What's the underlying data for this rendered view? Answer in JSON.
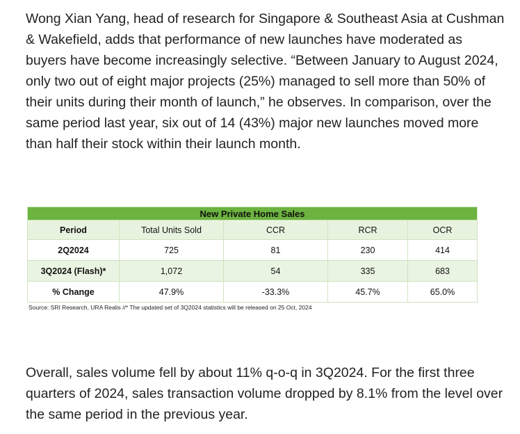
{
  "intro_paragraph": "Wong Xian Yang, head of research for Singapore & Southeast Asia at Cushman & Wakefield, adds that performance of new launches have moderated as buyers have become increasingly selective. “Between January to August 2024, only two out of eight major projects (25%) managed to sell more than 50% of their units during their month of launch,” he observes. In comparison, over the same period last year, six out of 14 (43%) major new launches moved more than half their stock within their launch month.",
  "table": {
    "title": "New Private Home Sales",
    "headers": [
      "Period",
      "Total Units Sold",
      "CCR",
      "RCR",
      "OCR"
    ],
    "rows": [
      [
        "2Q2024",
        "725",
        "81",
        "230",
        "414"
      ],
      [
        "3Q2024 (Flash)*",
        "1,072",
        "54",
        "335",
        "683"
      ],
      [
        "% Change",
        "47.9%",
        "-33.3%",
        "45.7%",
        "65.0%"
      ]
    ],
    "source": "Source: SRI Research, URA Realis //* The updated set of 3Q2024 statistics will be released on 25 Oct, 2024",
    "colors": {
      "title_bg": "#6cb33f",
      "band_bg": "#eaf4e2"
    }
  },
  "closing_paragraph": "Overall, sales volume fell by about 11% q-o-q in 3Q2024. For the first three quarters of 2024, sales transaction volume dropped by 8.1% from the level over the same period in the previous year."
}
